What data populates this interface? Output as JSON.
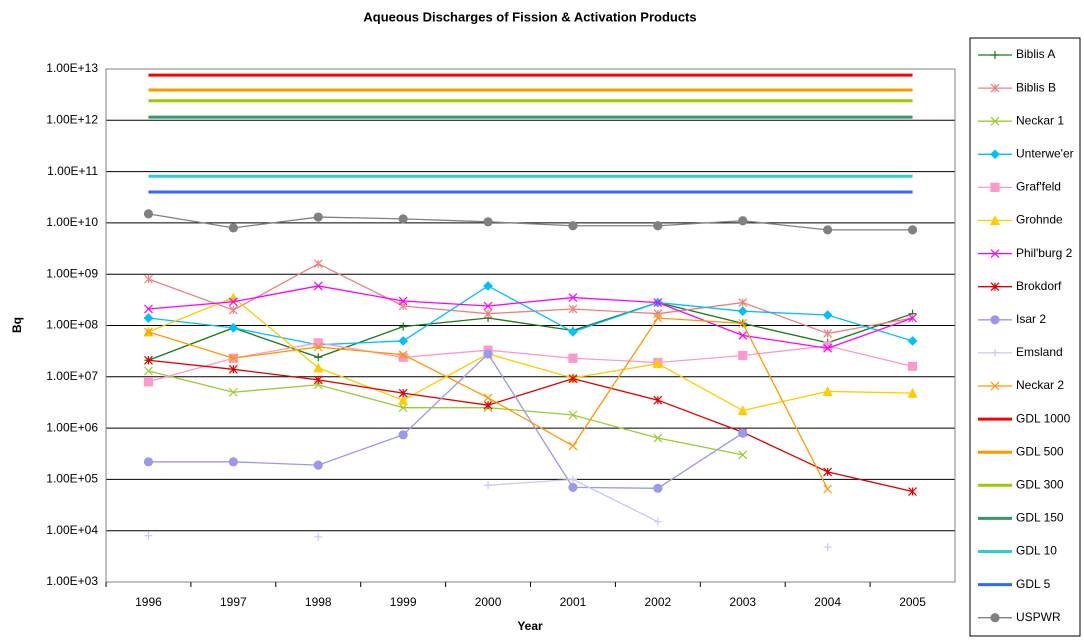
{
  "chart_data": {
    "type": "line",
    "title": "Aqueous Discharges of Fission & Activation Products",
    "x_label": "Year",
    "y_label": "Bq",
    "ylog": true,
    "grid": true,
    "legend": "right",
    "categories": [
      "1996",
      "1997",
      "1998",
      "1999",
      "2000",
      "2001",
      "2002",
      "2003",
      "2004",
      "2005"
    ],
    "ylim": [
      1000,
      10000000000000
    ],
    "yticks": [
      {
        "value": 1000,
        "label": "1.00E+03"
      },
      {
        "value": 10000,
        "label": "1.00E+04"
      },
      {
        "value": 100000,
        "label": "1.00E+05"
      },
      {
        "value": 1000000,
        "label": "1.00E+06"
      },
      {
        "value": 10000000,
        "label": "1.00E+07"
      },
      {
        "value": 100000000,
        "label": "1.00E+08"
      },
      {
        "value": 1000000000,
        "label": "1.00E+09"
      },
      {
        "value": 10000000000,
        "label": "1.00E+10"
      },
      {
        "value": 100000000000,
        "label": "1.00E+11"
      },
      {
        "value": 1000000000000,
        "label": "1.00E+12"
      },
      {
        "value": 10000000000000,
        "label": "1.00E+13"
      }
    ],
    "series": [
      {
        "name": "Biblis A",
        "color": "#1a7a1a",
        "marker": "plus",
        "values": [
          21000000,
          90000000,
          24000000,
          95000000,
          140000000,
          80000000,
          280000000,
          110000000,
          46000000,
          170000000
        ]
      },
      {
        "name": "Biblis B",
        "color": "#f08080",
        "marker": "star",
        "values": [
          800000000,
          200000000,
          1600000000,
          240000000,
          170000000,
          210000000,
          170000000,
          280000000,
          70000000,
          140000000
        ]
      },
      {
        "name": "Neckar 1",
        "color": "#99cc33",
        "marker": "x",
        "values": [
          13000000,
          5000000,
          7000000,
          2500000,
          2500000,
          1800000,
          640000,
          300000,
          null,
          null
        ]
      },
      {
        "name": "Unterwe'er",
        "color": "#00bfff",
        "marker": "diamond",
        "values": [
          140000000,
          90000000,
          42000000,
          50000000,
          590000000,
          75000000,
          280000000,
          190000000,
          160000000,
          50000000
        ]
      },
      {
        "name": "Graf'feld",
        "color": "#ff99cc",
        "marker": "square",
        "values": [
          8000000,
          23000000,
          46000000,
          24000000,
          33000000,
          23000000,
          19000000,
          26000000,
          40000000,
          16000000
        ]
      },
      {
        "name": "Grohnde",
        "color": "#ffcc00",
        "marker": "triangle",
        "values": [
          75000000,
          350000000,
          15000000,
          3500000,
          28000000,
          9500000,
          18000000,
          2200000,
          5200000,
          4800000
        ]
      },
      {
        "name": "Phil'burg 2",
        "color": "#ff00ff",
        "marker": "x",
        "values": [
          210000000,
          290000000,
          590000000,
          300000000,
          240000000,
          350000000,
          280000000,
          64000000,
          36000000,
          140000000
        ]
      },
      {
        "name": "Brokdorf",
        "color": "#e00000",
        "marker": "star",
        "values": [
          21000000,
          14000000,
          8700000,
          4800000,
          2800000,
          9200000,
          3500000,
          830000,
          140000,
          58000
        ]
      },
      {
        "name": "Isar 2",
        "color": "#9999ee",
        "marker": "circle",
        "values": [
          220000,
          220000,
          190000,
          740000,
          28000000,
          70000,
          67000,
          800000,
          null,
          null
        ]
      },
      {
        "name": "Emsland",
        "color": "#c8c8f4",
        "marker": "plus",
        "values": [
          8000,
          null,
          7600,
          null,
          77000,
          100000,
          15000,
          null,
          4800,
          null
        ]
      },
      {
        "name": "Neckar 2",
        "color": "#ff9900",
        "marker": "x",
        "values": [
          75000000,
          23000000,
          38000000,
          27000000,
          3900000,
          450000,
          140000000,
          110000000,
          65000,
          null
        ]
      },
      {
        "name": "GDL 1000",
        "color": "#ff0000",
        "marker": "none",
        "values": [
          7600000000000,
          7600000000000,
          7600000000000,
          7600000000000,
          7600000000000,
          7600000000000,
          7600000000000,
          7600000000000,
          7600000000000,
          7600000000000
        ]
      },
      {
        "name": "GDL 500",
        "color": "#ff9900",
        "marker": "none",
        "values": [
          3900000000000,
          3900000000000,
          3900000000000,
          3900000000000,
          3900000000000,
          3900000000000,
          3900000000000,
          3900000000000,
          3900000000000,
          3900000000000
        ]
      },
      {
        "name": "GDL 300",
        "color": "#99cc00",
        "marker": "none",
        "values": [
          2400000000000,
          2400000000000,
          2400000000000,
          2400000000000,
          2400000000000,
          2400000000000,
          2400000000000,
          2400000000000,
          2400000000000,
          2400000000000
        ]
      },
      {
        "name": "GDL 150",
        "color": "#339966",
        "marker": "none",
        "values": [
          1150000000000,
          1150000000000,
          1150000000000,
          1150000000000,
          1150000000000,
          1150000000000,
          1150000000000,
          1150000000000,
          1150000000000,
          1150000000000
        ]
      },
      {
        "name": "GDL 10",
        "color": "#33cccc",
        "marker": "none",
        "values": [
          81000000000,
          81000000000,
          81000000000,
          81000000000,
          81000000000,
          81000000000,
          81000000000,
          81000000000,
          81000000000,
          81000000000
        ]
      },
      {
        "name": "GDL 5",
        "color": "#3366ff",
        "marker": "none",
        "values": [
          40000000000,
          40000000000,
          40000000000,
          40000000000,
          40000000000,
          40000000000,
          40000000000,
          40000000000,
          40000000000,
          40000000000
        ]
      },
      {
        "name": "USPWR",
        "color": "#808080",
        "marker": "circle",
        "values": [
          15000000000,
          8000000000,
          13000000000,
          12000000000,
          10500000000,
          8800000000,
          8800000000,
          11000000000,
          7300000000,
          7300000000
        ]
      }
    ]
  }
}
